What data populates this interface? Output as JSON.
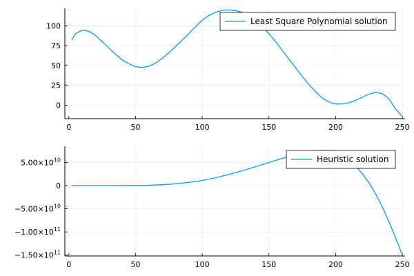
{
  "chart_data": [
    {
      "type": "line",
      "title": "",
      "xlabel": "",
      "ylabel": "",
      "xlim": [
        -3,
        252
      ],
      "ylim": [
        -17,
        122
      ],
      "grid": true,
      "legend_position": "top-right",
      "x_ticks": [
        0,
        50,
        100,
        150,
        200,
        250
      ],
      "x_tick_labels": [
        "0",
        "50",
        "100",
        "150",
        "200",
        "250"
      ],
      "y_ticks": [
        0,
        25,
        50,
        75,
        100
      ],
      "y_tick_labels": [
        "0",
        "25",
        "50",
        "75",
        "100"
      ],
      "series": [
        {
          "name": "Least Square Polynomial solution",
          "color": "#009af9",
          "x": [
            2,
            5,
            10,
            15,
            20,
            25,
            30,
            35,
            40,
            45,
            50,
            55,
            60,
            65,
            70,
            75,
            80,
            85,
            90,
            95,
            100,
            105,
            110,
            115,
            120,
            125,
            130,
            135,
            140,
            145,
            150,
            155,
            160,
            165,
            170,
            175,
            180,
            185,
            190,
            195,
            200,
            205,
            210,
            215,
            220,
            225,
            230,
            235,
            240,
            245,
            250
          ],
          "y": [
            82,
            90,
            94.5,
            93,
            88,
            80,
            72,
            64,
            57,
            52,
            48.5,
            47.5,
            49,
            53,
            59,
            66,
            74,
            82,
            90,
            99,
            107,
            113,
            117,
            119.5,
            120,
            119,
            117,
            113,
            107,
            99,
            90,
            80,
            69,
            58,
            47,
            36,
            26,
            17,
            9,
            4,
            1.5,
            1.5,
            3,
            6,
            10,
            14,
            16,
            14.5,
            8,
            -5,
            -14
          ]
        }
      ]
    },
    {
      "type": "line",
      "title": "",
      "xlabel": "",
      "ylabel": "",
      "xlim": [
        -3,
        252
      ],
      "ylim": [
        -152000000000.0,
        85000000000.0
      ],
      "grid": true,
      "legend_position": "top-right",
      "x_ticks": [
        0,
        50,
        100,
        150,
        200,
        250
      ],
      "x_tick_labels": [
        "0",
        "50",
        "100",
        "150",
        "200",
        "250"
      ],
      "y_ticks": [
        50000000000.0,
        0,
        -50000000000.0,
        -100000000000.0,
        -150000000000.0
      ],
      "y_tick_labels": [
        {
          "base": "5.00×10",
          "exp": "10"
        },
        {
          "base": "0",
          "exp": ""
        },
        {
          "base": "−5.00×10",
          "exp": "10"
        },
        {
          "base": "−1.00×10",
          "exp": "11"
        },
        {
          "base": "−1.50×10",
          "exp": "11"
        }
      ],
      "series": [
        {
          "name": "Heuristic solution",
          "color": "#009af9",
          "x": [
            2,
            10,
            20,
            30,
            40,
            50,
            60,
            70,
            80,
            90,
            100,
            110,
            120,
            130,
            140,
            150,
            160,
            170,
            180,
            185,
            190,
            195,
            200,
            205,
            210,
            215,
            220,
            225,
            230,
            235,
            240,
            245,
            250
          ],
          "y": [
            0,
            0,
            0,
            0,
            100000000.0,
            300000000.0,
            800000000.0,
            2000000000.0,
            4000000000.0,
            7000000000.0,
            11000000000.0,
            17000000000.0,
            24000000000.0,
            32000000000.0,
            41000000000.0,
            50000000000.0,
            59000000000.0,
            67000000000.0,
            73000000000.0,
            75000000000.0,
            76000000000.0,
            75500000000.0,
            72000000000.0,
            65000000000.0,
            55000000000.0,
            42000000000.0,
            26000000000.0,
            6000000000.0,
            -18000000000.0,
            -46000000000.0,
            -78000000000.0,
            -113000000000.0,
            -150000000000.0
          ]
        }
      ]
    }
  ]
}
